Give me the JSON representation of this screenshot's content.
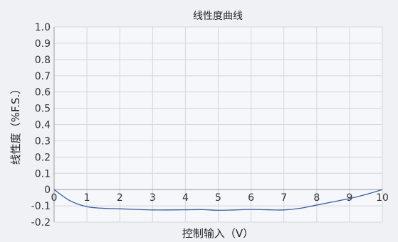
{
  "chart_data": {
    "type": "line",
    "title": "线性度曲线",
    "xlabel": "控制输入（V）",
    "ylabel": "线性度（%F.S.）",
    "xlim": [
      0,
      10
    ],
    "ylim": [
      -0.2,
      1.0
    ],
    "x_ticks": [
      0,
      1,
      2,
      3,
      4,
      5,
      6,
      7,
      8,
      9,
      10
    ],
    "x_tick_labels": [
      "0",
      "1",
      "2",
      "3",
      "4",
      "5",
      "6",
      "7",
      "8",
      "9",
      "10"
    ],
    "y_ticks": [
      1.0,
      0.9,
      0.8,
      0.7,
      0.6,
      0.5,
      0.4,
      0.3,
      0.2,
      0.1,
      0,
      -0.1,
      -0.2
    ],
    "y_tick_labels": [
      "1.0",
      "0.9",
      "0.8",
      "0.7",
      "0.6",
      "0.5",
      "0.4",
      "0.3",
      "0.2",
      "0.1",
      "0",
      "-0.1",
      "-0.2"
    ],
    "grid": true,
    "series": [
      {
        "color": "#2f5fa8",
        "x": [
          0,
          0.5,
          1,
          1.5,
          2,
          2.5,
          3,
          3.5,
          4,
          4.5,
          5,
          5.5,
          6,
          6.5,
          7,
          7.5,
          8,
          8.5,
          9,
          9.5,
          10
        ],
        "y": [
          0,
          -0.07,
          -0.105,
          -0.115,
          -0.118,
          -0.122,
          -0.125,
          -0.125,
          -0.124,
          -0.123,
          -0.127,
          -0.125,
          -0.122,
          -0.124,
          -0.125,
          -0.115,
          -0.095,
          -0.075,
          -0.055,
          -0.03,
          0
        ]
      }
    ]
  }
}
